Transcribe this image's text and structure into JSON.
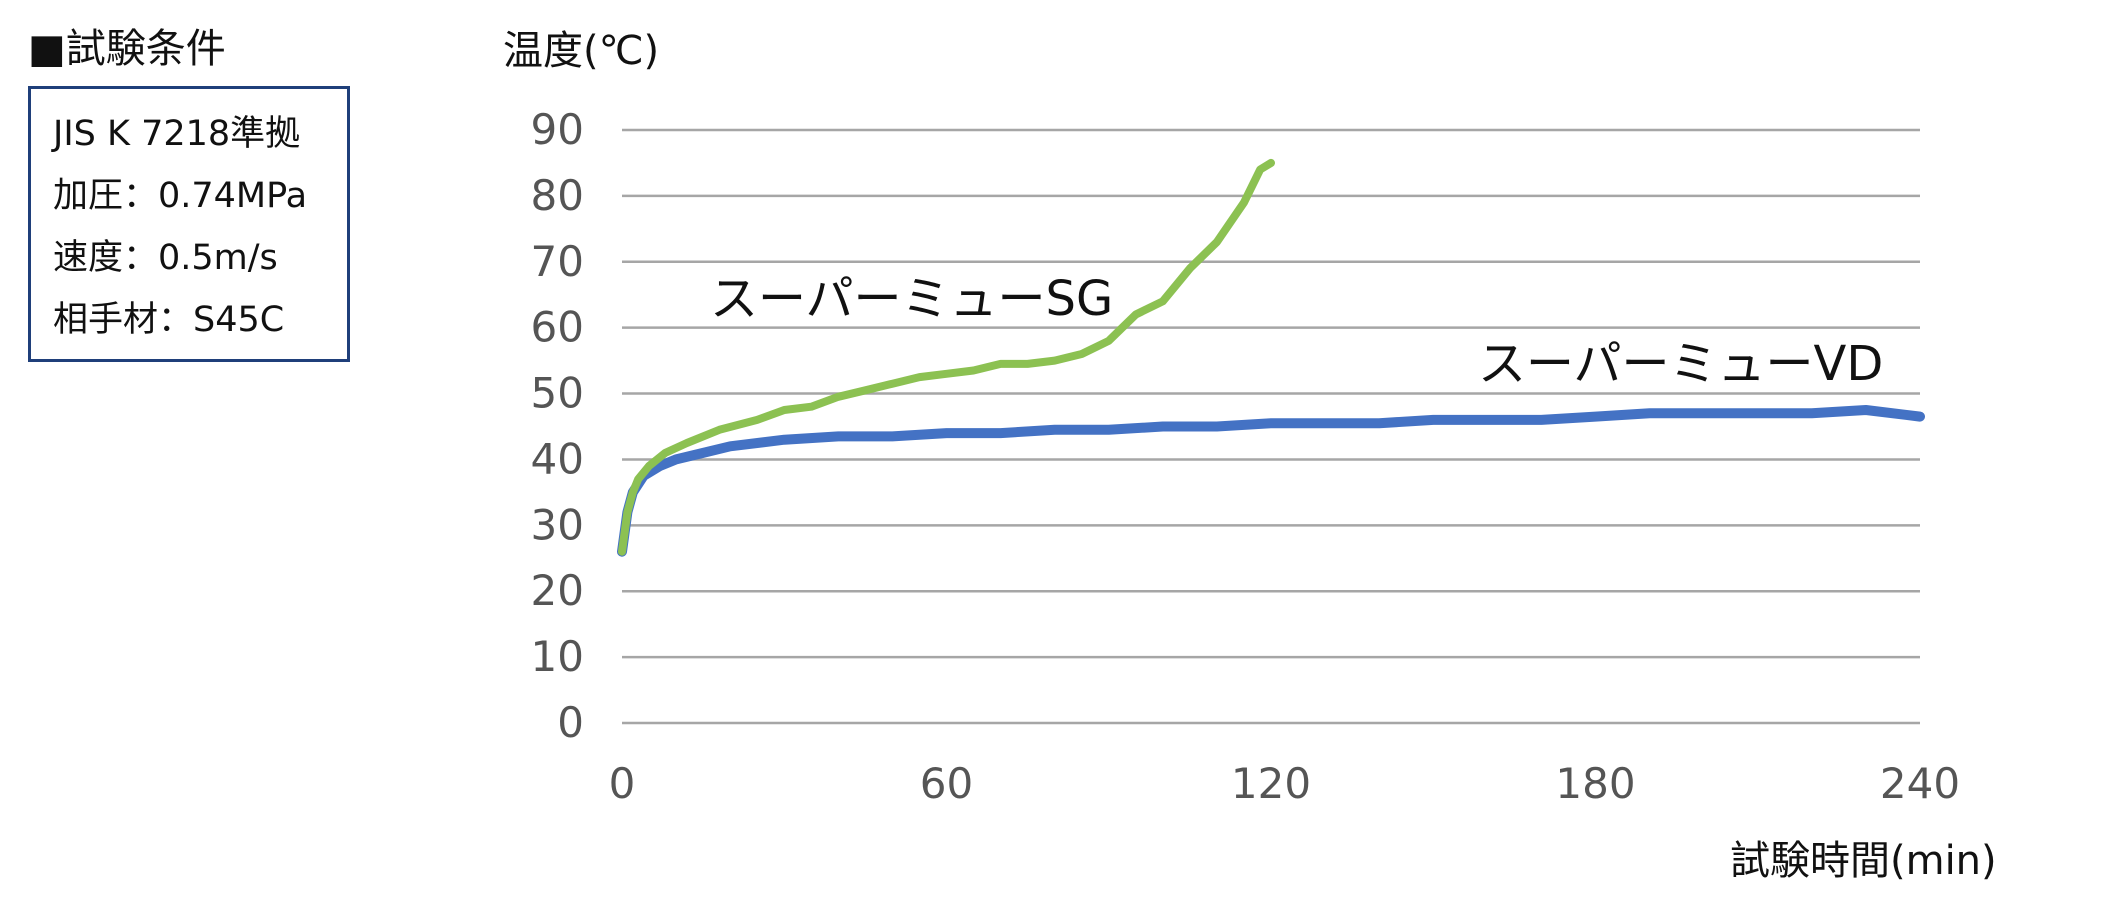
{
  "conditions": {
    "title": "■試験条件",
    "lines": [
      "JIS K 7218準拠",
      "加圧：0.74MPa",
      "速度：0.5m/s",
      "相手材：S45C"
    ]
  },
  "chart_data": {
    "type": "line",
    "ylabel": "温度(℃)",
    "xlabel": "試験時間(min)",
    "xlim": [
      0,
      240
    ],
    "ylim": [
      0,
      90
    ],
    "xticks": [
      "0",
      "60",
      "120",
      "180",
      "240"
    ],
    "yticks": [
      "0",
      "10",
      "20",
      "30",
      "40",
      "50",
      "60",
      "70",
      "80",
      "90"
    ],
    "grid": true,
    "series": [
      {
        "name": "スーパーミューSG",
        "color": "#8cc152",
        "x": [
          0,
          1,
          2,
          3,
          5,
          8,
          12,
          18,
          25,
          30,
          35,
          40,
          45,
          50,
          55,
          60,
          65,
          70,
          75,
          80,
          85,
          90,
          95,
          100,
          105,
          110,
          115,
          118,
          120
        ],
        "y": [
          26,
          32,
          35,
          37,
          39,
          41,
          42.5,
          44.5,
          46,
          47.5,
          48,
          49.5,
          50.5,
          51.5,
          52.5,
          53,
          53.5,
          54.5,
          54.5,
          55,
          56,
          58,
          62,
          64,
          69,
          73,
          79,
          84,
          85
        ]
      },
      {
        "name": "スーパーミューVD",
        "color": "#4472c4",
        "x": [
          0,
          1,
          2,
          4,
          7,
          10,
          15,
          20,
          30,
          40,
          50,
          60,
          70,
          80,
          90,
          100,
          110,
          120,
          130,
          140,
          150,
          160,
          170,
          180,
          190,
          200,
          210,
          220,
          230,
          240
        ],
        "y": [
          26,
          32,
          35,
          37.5,
          39,
          40,
          41,
          42,
          43,
          43.5,
          43.5,
          44,
          44,
          44.5,
          44.5,
          45,
          45,
          45.5,
          45.5,
          45.5,
          46,
          46,
          46,
          46.5,
          47,
          47,
          47,
          47,
          47.5,
          46.5
        ]
      }
    ]
  }
}
